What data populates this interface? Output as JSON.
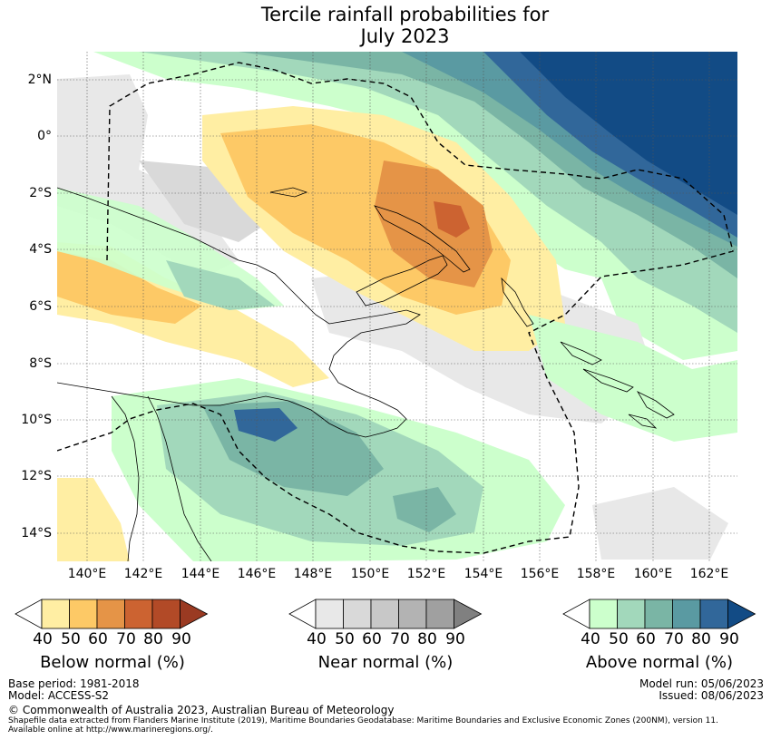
{
  "title_line1": "Tercile rainfall probabilities for",
  "title_line2": "July 2023",
  "lat_labels": [
    "2°N",
    "0°",
    "2°S",
    "4°S",
    "6°S",
    "8°S",
    "10°S",
    "12°S",
    "14°S"
  ],
  "lon_labels": [
    "140°E",
    "142°E",
    "144°E",
    "146°E",
    "148°E",
    "150°E",
    "152°E",
    "154°E",
    "156°E",
    "158°E",
    "160°E",
    "162°E"
  ],
  "colorbars": {
    "below": {
      "label": "Below normal (%)",
      "ticks": [
        "40",
        "50",
        "60",
        "70",
        "80",
        "90"
      ],
      "colors": [
        "#ffffff",
        "#ffeea3",
        "#fdc966",
        "#e59447",
        "#cc6331",
        "#b24a27",
        "#9a3a22"
      ]
    },
    "near": {
      "label": "Near normal (%)",
      "ticks": [
        "40",
        "50",
        "60",
        "70",
        "80",
        "90"
      ],
      "colors": [
        "#ffffff",
        "#e8e8e8",
        "#d9d9d9",
        "#c8c8c8",
        "#b3b3b3",
        "#a0a0a0",
        "#808080"
      ]
    },
    "above": {
      "label": "Above normal (%)",
      "ticks": [
        "40",
        "50",
        "60",
        "70",
        "80",
        "90"
      ],
      "colors": [
        "#ffffff",
        "#ccffcc",
        "#a2d8bb",
        "#7ab5a5",
        "#5a9aa2",
        "#31679a",
        "#124b85"
      ]
    }
  },
  "footer": {
    "base_period": "Base period: 1981-2018",
    "model": "Model: ACCESS-S2",
    "copyright": "© Commonwealth of Australia 2023, Australian Bureau of Meteorology",
    "shapefile_line1": "Shapefile data extracted from Flanders Marine Institute (2019), Maritime Boundaries Geodatabase: Maritime Boundaries and Exclusive Economic Zones (200NM), version 11.",
    "shapefile_line2": "Available online at http://www.marineregions.org/.",
    "model_run": "Model run: 05/06/2023",
    "issued": "Issued: 08/06/2023"
  }
}
